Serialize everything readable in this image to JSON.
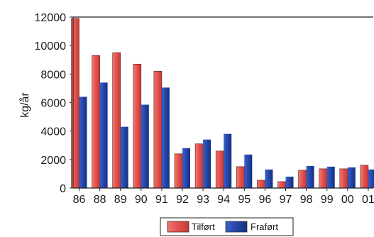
{
  "chart_data": {
    "type": "bar",
    "title": "",
    "xlabel": "",
    "ylabel": "kg/år",
    "ylim": [
      0,
      12000
    ],
    "yticks": [
      0,
      2000,
      4000,
      6000,
      8000,
      10000,
      12000
    ],
    "categories": [
      "86",
      "88",
      "89",
      "90",
      "91",
      "92",
      "93",
      "94",
      "95",
      "96",
      "97",
      "98",
      "99",
      "00",
      "01"
    ],
    "series": [
      {
        "name": "Tilført",
        "color": "#e2504b",
        "values": [
          11900,
          9300,
          9500,
          8700,
          8200,
          2400,
          3100,
          2600,
          1500,
          550,
          450,
          1250,
          1350,
          1350,
          1600
        ]
      },
      {
        "name": "Fraført",
        "color": "#2446a8",
        "values": [
          6400,
          7400,
          4300,
          5850,
          7050,
          2800,
          3400,
          3800,
          2350,
          1300,
          800,
          1550,
          1500,
          1450,
          1300
        ]
      }
    ],
    "legend_position": "bottom-center",
    "grid": false
  }
}
